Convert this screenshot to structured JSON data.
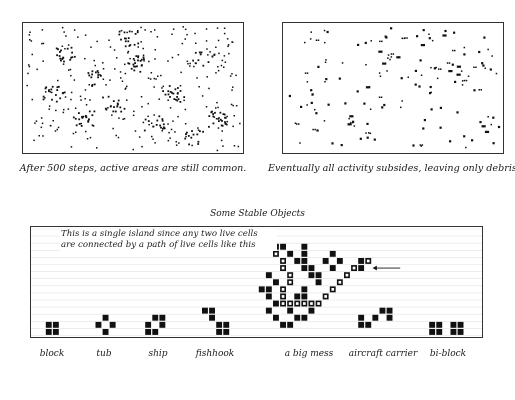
{
  "simulation": {
    "left_caption": "After 500 steps, active areas are still common.",
    "right_caption": "Eventually all activity subsides, leaving only debris."
  },
  "stable_objects": {
    "title": "Some Stable Objects",
    "annotation_line1": "This is a single island since any two live cells",
    "annotation_line2": "are connected by a path of live cells like this",
    "labels": {
      "block": "block",
      "tub": "tub",
      "ship": "ship",
      "fishhook": "fishhook",
      "big_mess": "a big mess",
      "aircraft_carrier": "aircraft carrier",
      "bi_block": "bi-block"
    }
  },
  "colors": {
    "cell": "#111111",
    "grid": "#e2e2e2",
    "path_cell": "#ffffff"
  }
}
